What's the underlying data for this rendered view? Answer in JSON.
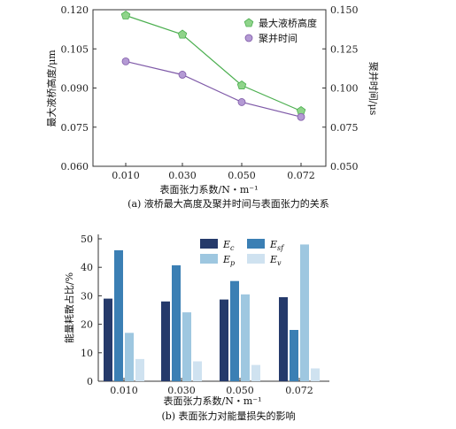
{
  "chart_data": [
    {
      "type": "line",
      "caption": "(a) 液桥最大高度及聚并时间与表面张力的关系",
      "xlabel": "表面张力系数/N・m⁻¹",
      "categories": [
        "0.010",
        "0.030",
        "0.050",
        "0.072"
      ],
      "left_axis": {
        "label": "最大液桥高度/μm",
        "color": "#3fb24a",
        "ylim": [
          0.06,
          0.12
        ],
        "ticks": [
          "0.060",
          "0.075",
          "0.090",
          "0.105",
          "0.120"
        ]
      },
      "right_axis": {
        "label": "聚并时间/μs",
        "color": "#7f5aa8",
        "ylim": [
          0.05,
          0.15
        ],
        "ticks": [
          "0.050",
          "0.075",
          "0.100",
          "0.125",
          "0.150"
        ]
      },
      "series": [
        {
          "name": "最大液桥高度",
          "axis": "left",
          "color": "#4caf50",
          "marker_fill": "#8fd48a",
          "values": [
            0.1178,
            0.1105,
            0.091,
            0.0812
          ]
        },
        {
          "name": "聚并时间",
          "axis": "right",
          "color": "#7f5aa8",
          "marker_fill": "#b49ad4",
          "values": [
            0.117,
            0.1085,
            0.091,
            0.0815
          ]
        }
      ],
      "legend": "top-right"
    },
    {
      "type": "bar",
      "caption": "(b) 表面张力对能量损失的影响",
      "xlabel": "表面张力系数/N・m⁻¹",
      "ylabel": "能量耗散占比/%",
      "ylim": [
        0,
        50
      ],
      "yticks": [
        "0",
        "10",
        "20",
        "30",
        "40",
        "50"
      ],
      "categories": [
        "0.010",
        "0.030",
        "0.050",
        "0.072"
      ],
      "series": [
        {
          "name": "E",
          "sub": "c",
          "color": "#253a6b",
          "values": [
            29,
            28,
            28.7,
            29.5
          ]
        },
        {
          "name": "E",
          "sub": "sf",
          "color": "#3b7fb4",
          "values": [
            46,
            40.7,
            35.2,
            18
          ]
        },
        {
          "name": "E",
          "sub": "p",
          "color": "#9ec7e0",
          "values": [
            17,
            24.2,
            30.5,
            48
          ]
        },
        {
          "name": "E",
          "sub": "v",
          "color": "#cfe2f0",
          "values": [
            7.8,
            7,
            5.7,
            4.5
          ]
        }
      ],
      "legend": "top-right"
    }
  ]
}
